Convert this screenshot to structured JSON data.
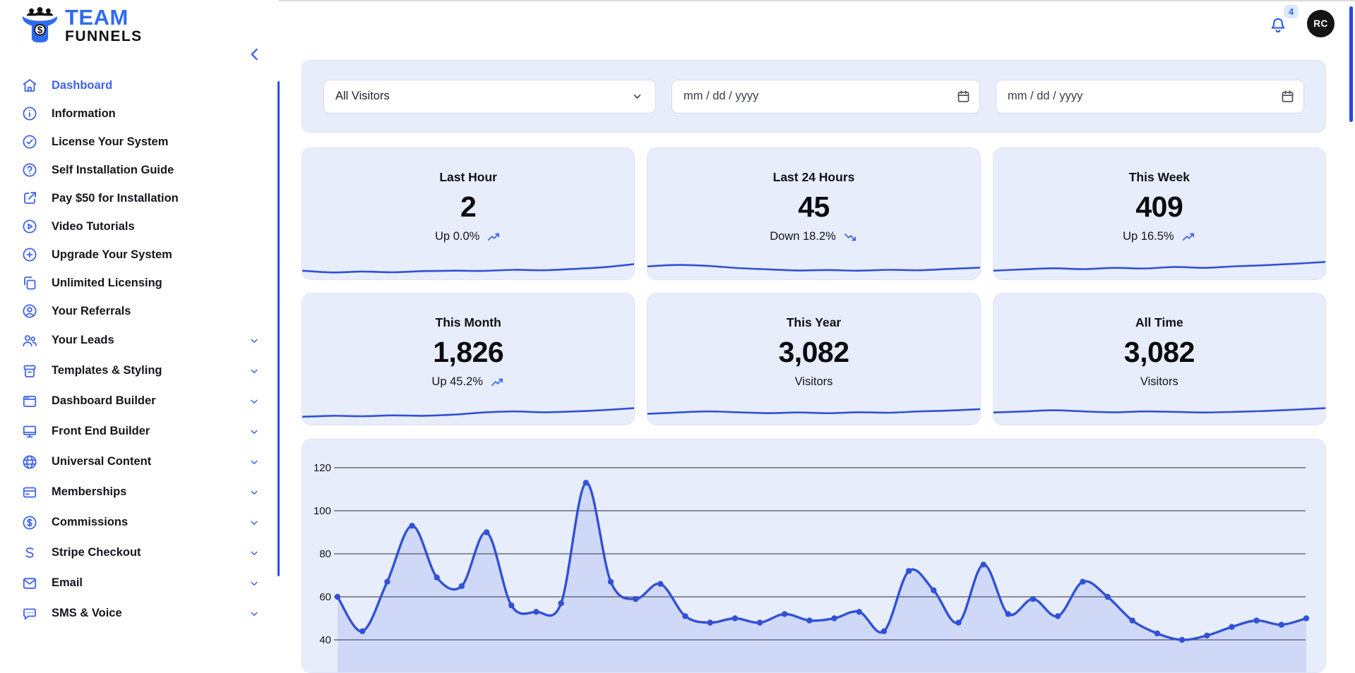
{
  "brand": {
    "team": "TEAM",
    "funnels": "FUNNELS"
  },
  "topbar": {
    "notification_count": "4",
    "avatar_initials": "RC"
  },
  "sidebar": {
    "items": [
      {
        "label": "Dashboard",
        "icon": "home",
        "active": true
      },
      {
        "label": "Information",
        "icon": "info-circle"
      },
      {
        "label": "License Your System",
        "icon": "check-circle"
      },
      {
        "label": "Self Installation Guide",
        "icon": "question-circle"
      },
      {
        "label": "Pay $50 for Installation",
        "icon": "external-link"
      },
      {
        "label": "Video Tutorials",
        "icon": "play-circle"
      },
      {
        "label": "Upgrade Your System",
        "icon": "plus-circle"
      },
      {
        "label": "Unlimited Licensing",
        "icon": "copy"
      },
      {
        "label": "Your Referrals",
        "icon": "user-circle"
      },
      {
        "label": "Your Leads",
        "icon": "users",
        "expandable": true
      },
      {
        "label": "Templates & Styling",
        "icon": "archive-box",
        "expandable": true
      },
      {
        "label": "Dashboard Builder",
        "icon": "window",
        "expandable": true
      },
      {
        "label": "Front End Builder",
        "icon": "monitor",
        "expandable": true
      },
      {
        "label": "Universal Content",
        "icon": "globe",
        "expandable": true
      },
      {
        "label": "Memberships",
        "icon": "credit-card",
        "expandable": true
      },
      {
        "label": "Commissions",
        "icon": "dollar-circle",
        "expandable": true
      },
      {
        "label": "Stripe Checkout",
        "icon": "stripe-s",
        "expandable": true
      },
      {
        "label": "Email",
        "icon": "mail",
        "expandable": true
      },
      {
        "label": "SMS & Voice",
        "icon": "chat-bubble",
        "expandable": true
      }
    ]
  },
  "filters": {
    "visitor_select": "All Visitors",
    "date_from_placeholder": "mm / dd / yyyy",
    "date_to_placeholder": "mm / dd / yyyy"
  },
  "stats": [
    {
      "title": "Last Hour",
      "value": "2",
      "trend": "up",
      "trend_label": "Up 0.0%",
      "sparkline": [
        3,
        2.2,
        2.6,
        2.3,
        2.8,
        3,
        2.9,
        3.4,
        3.2,
        3.8,
        4.6,
        6
      ]
    },
    {
      "title": "Last 24 Hours",
      "value": "45",
      "trend": "down",
      "trend_label": "Down 18.2%",
      "sparkline": [
        5,
        5.6,
        5.2,
        4.2,
        3.6,
        3.1,
        3.3,
        3,
        3.4,
        3.2,
        3.8,
        4.4
      ]
    },
    {
      "title": "This Week",
      "value": "409",
      "trend": "up",
      "trend_label": "Up 16.5%",
      "sparkline": [
        3,
        3.6,
        4.1,
        3.7,
        4.3,
        4,
        4.7,
        4.3,
        5,
        5.5,
        6.2,
        7
      ]
    },
    {
      "title": "This Month",
      "value": "1,826",
      "trend": "up",
      "trend_label": "Up 45.2%",
      "sparkline": [
        2.6,
        3.1,
        2.9,
        3.3,
        3.1,
        3.6,
        4.6,
        5.1,
        4.7,
        5.1,
        5.7,
        6.6
      ]
    },
    {
      "title": "This Year",
      "value": "3,082",
      "trend": "none",
      "trend_label": "Visitors",
      "sparkline": [
        4,
        4.6,
        5.1,
        4.7,
        4.3,
        4.6,
        4.3,
        4.7,
        4.5,
        5.1,
        5.5,
        6.1
      ]
    },
    {
      "title": "All Time",
      "value": "3,082",
      "trend": "none",
      "trend_label": "Visitors",
      "sparkline": [
        4.6,
        5.1,
        5.6,
        5.1,
        4.7,
        5.1,
        4.9,
        4.6,
        4.9,
        5.3,
        5.9,
        6.6
      ]
    }
  ],
  "chart_data": {
    "type": "line",
    "series": [
      {
        "name": "Visitors",
        "values": [
          60,
          44,
          67,
          93,
          69,
          65,
          90,
          56,
          53,
          57,
          113,
          67,
          59,
          66,
          51,
          48,
          50,
          48,
          52,
          49,
          50,
          53,
          44,
          72,
          63,
          48,
          75,
          52,
          59,
          51,
          67,
          60,
          49,
          43,
          40,
          42,
          46,
          49,
          47,
          50
        ]
      }
    ],
    "yticks": [
      40,
      60,
      80,
      100,
      120
    ],
    "ylim": [
      38,
      128
    ],
    "grid": true,
    "legend": false,
    "markers": true,
    "line_color": "#3151D6",
    "fill_color": "rgba(79,108,224,0.16)",
    "note_xaxis": "x tick labels cut off below viewport"
  },
  "colors": {
    "accent": "#3E63F2",
    "card_bg": "#E8EDFB",
    "line": "#3151D6",
    "badge_bg": "#DCE9FD",
    "badge_text": "#2B6CF0",
    "avatar_bg": "#141417",
    "gridline": "#2B2B2E"
  }
}
